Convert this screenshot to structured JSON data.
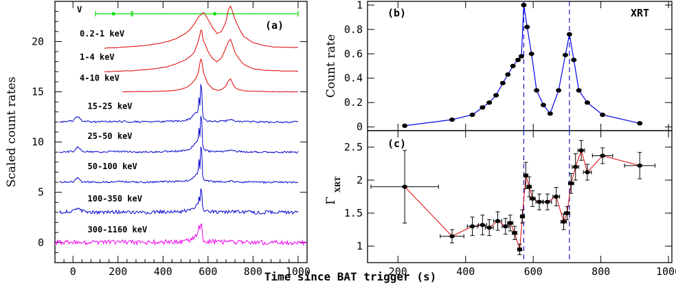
{
  "figure": {
    "xlabel": "Time since BAT trigger (s)"
  },
  "chart_data": [
    {
      "panel": "(a)",
      "type": "line",
      "ylabel": "Scaled count rates",
      "xlim": [
        -80,
        1040
      ],
      "ylim": [
        -2,
        24
      ],
      "xticks": [
        0,
        200,
        400,
        600,
        800,
        1000
      ],
      "yticks": [
        0,
        5,
        10,
        15,
        20
      ],
      "v_label": "V",
      "v_band": {
        "color": "#00dd00",
        "points": [
          {
            "x": 180,
            "xerr": [
              100,
              260
            ]
          },
          {
            "x": 630,
            "xerr": [
              265,
              1000
            ]
          }
        ]
      },
      "series": [
        {
          "name": "0.2-1 keV",
          "color": "#e00000",
          "offset": 19.3,
          "label_x": 30,
          "label_y": 20.5,
          "x": [
            140,
            200,
            260,
            320,
            380,
            420,
            460,
            500,
            520,
            540,
            560,
            570,
            580,
            590,
            600,
            620,
            640,
            660,
            680,
            690,
            700,
            710,
            720,
            740,
            760,
            800,
            850,
            900,
            1000
          ],
          "y": [
            19.35,
            19.4,
            19.5,
            19.6,
            19.8,
            20.0,
            20.3,
            20.8,
            21.2,
            21.8,
            22.5,
            22.7,
            22.9,
            22.6,
            22.2,
            21.4,
            20.8,
            21.0,
            22.0,
            23.2,
            23.5,
            22.9,
            22.2,
            21.2,
            20.5,
            19.9,
            19.6,
            19.45,
            19.4
          ]
        },
        {
          "name": "1-4 keV",
          "color": "#e00000",
          "offset": 17.0,
          "label_x": 30,
          "label_y": 18.2,
          "x": [
            140,
            200,
            260,
            320,
            380,
            420,
            460,
            500,
            520,
            540,
            550,
            560,
            565,
            570,
            575,
            580,
            590,
            600,
            620,
            640,
            660,
            680,
            690,
            700,
            710,
            720,
            740,
            760,
            800,
            850,
            900,
            1000
          ],
          "y": [
            17.0,
            17.05,
            17.1,
            17.2,
            17.35,
            17.5,
            17.8,
            18.2,
            18.5,
            19.0,
            19.6,
            20.3,
            20.8,
            21.4,
            20.6,
            20.0,
            19.6,
            19.0,
            18.3,
            18.0,
            18.4,
            19.4,
            20.0,
            20.2,
            19.6,
            18.9,
            18.2,
            17.7,
            17.3,
            17.15,
            17.1,
            17.05
          ]
        },
        {
          "name": "4-10 keV",
          "color": "#e00000",
          "offset": 15.0,
          "label_x": 30,
          "label_y": 16.1,
          "x": [
            220,
            300,
            380,
            440,
            480,
            510,
            530,
            545,
            555,
            560,
            565,
            570,
            575,
            580,
            590,
            600,
            620,
            640,
            660,
            680,
            690,
            700,
            710,
            720,
            740,
            760,
            800,
            850,
            900,
            1000
          ],
          "y": [
            15.0,
            15.02,
            15.05,
            15.1,
            15.25,
            15.5,
            15.9,
            16.3,
            16.8,
            17.3,
            18.0,
            18.4,
            17.6,
            16.9,
            16.3,
            15.8,
            15.3,
            15.15,
            15.2,
            15.6,
            16.1,
            16.3,
            15.8,
            15.4,
            15.2,
            15.1,
            15.05,
            15.02,
            15.0,
            15.0
          ]
        },
        {
          "name": "15-25 keV",
          "color": "#0000cc",
          "offset": 12.0,
          "label_x": 65,
          "label_y": 13.3,
          "x": [
            -60,
            0,
            20,
            40,
            100,
            200,
            300,
            400,
            480,
            520,
            540,
            555,
            560,
            565,
            570,
            573,
            576,
            580,
            590,
            600,
            640,
            680,
            700,
            720,
            760,
            800,
            900,
            1000
          ],
          "y": [
            12.0,
            12.1,
            12.6,
            12.1,
            12.0,
            12.05,
            12.0,
            12.05,
            12.1,
            12.3,
            12.8,
            13.0,
            14.5,
            13.5,
            17.2,
            14.3,
            13.0,
            12.4,
            12.2,
            12.1,
            12.05,
            12.1,
            12.3,
            12.1,
            12.05,
            12.0,
            12.0,
            12.0
          ]
        },
        {
          "name": "25-50 keV",
          "color": "#0000cc",
          "offset": 9.0,
          "label_x": 65,
          "label_y": 10.3,
          "x": [
            -60,
            0,
            20,
            40,
            100,
            200,
            300,
            400,
            480,
            520,
            540,
            555,
            560,
            565,
            570,
            573,
            576,
            580,
            590,
            600,
            640,
            680,
            700,
            720,
            760,
            800,
            900,
            1000
          ],
          "y": [
            9.0,
            9.05,
            9.5,
            9.1,
            9.0,
            9.05,
            9.0,
            9.05,
            9.1,
            9.3,
            9.8,
            10.1,
            11.4,
            10.4,
            13.9,
            11.3,
            9.9,
            9.3,
            9.2,
            9.1,
            9.05,
            9.1,
            9.2,
            9.1,
            9.05,
            9.0,
            9.0,
            9.0
          ]
        },
        {
          "name": "50-100 keV",
          "color": "#0000cc",
          "offset": 6.0,
          "label_x": 65,
          "label_y": 7.3,
          "x": [
            -60,
            0,
            20,
            40,
            100,
            200,
            300,
            400,
            480,
            520,
            540,
            555,
            560,
            565,
            570,
            573,
            576,
            580,
            590,
            600,
            640,
            680,
            700,
            720,
            760,
            800,
            900,
            1000
          ],
          "y": [
            6.0,
            6.05,
            6.4,
            6.05,
            6.0,
            6.05,
            6.0,
            6.05,
            6.1,
            6.2,
            6.6,
            6.9,
            8.2,
            7.2,
            11.0,
            8.2,
            6.8,
            6.3,
            6.15,
            6.1,
            6.05,
            6.05,
            6.1,
            6.05,
            6.0,
            6.0,
            6.0,
            6.0
          ]
        },
        {
          "name": "100-350 keV",
          "color": "#0000cc",
          "offset": 3.0,
          "label_x": 65,
          "label_y": 4.1,
          "x": [
            -60,
            0,
            20,
            40,
            100,
            200,
            300,
            400,
            480,
            520,
            540,
            555,
            560,
            565,
            570,
            573,
            576,
            580,
            590,
            600,
            640,
            680,
            700,
            720,
            760,
            800,
            900,
            1000
          ],
          "y": [
            3.0,
            3.1,
            3.4,
            3.1,
            3.0,
            3.05,
            3.0,
            3.05,
            3.1,
            3.2,
            3.5,
            3.8,
            4.6,
            4.0,
            6.2,
            4.5,
            3.7,
            3.3,
            3.15,
            3.1,
            3.05,
            3.05,
            3.1,
            3.05,
            3.0,
            3.0,
            3.0,
            3.0
          ]
        },
        {
          "name": "300-1160 keV",
          "color": "#ee00ee",
          "offset": 0.0,
          "label_x": 65,
          "label_y": 1.0,
          "x": [
            -80,
            0,
            100,
            200,
            300,
            400,
            480,
            520,
            540,
            555,
            560,
            565,
            570,
            573,
            576,
            580,
            590,
            600,
            640,
            680,
            700,
            720,
            760,
            800,
            900,
            1040
          ],
          "y": [
            0.0,
            0.05,
            0.0,
            0.05,
            0.0,
            0.05,
            0.1,
            0.2,
            0.5,
            0.8,
            1.6,
            1.0,
            2.5,
            1.3,
            0.6,
            0.3,
            0.15,
            0.1,
            0.05,
            0.05,
            0.1,
            0.05,
            0.0,
            0.0,
            0.0,
            0.0
          ]
        }
      ]
    },
    {
      "panel": "(b)",
      "type": "line",
      "ylabel": "Count rate",
      "annotation": "XRT",
      "xlim": [
        110,
        1010
      ],
      "ylim": [
        -0.03,
        1.03
      ],
      "yticks": [
        0,
        0.2,
        0.4,
        0.6,
        0.8,
        1
      ],
      "ytick_labels": [
        "0",
        "0.2",
        "0.4",
        "0.6",
        "0.8",
        "1"
      ],
      "color": "#0000ee",
      "vlines": [
        572,
        707
      ],
      "x": [
        220,
        360,
        420,
        450,
        470,
        490,
        510,
        525,
        540,
        555,
        565,
        572,
        582,
        595,
        610,
        630,
        650,
        675,
        695,
        707,
        720,
        735,
        760,
        805,
        915
      ],
      "y": [
        0.01,
        0.06,
        0.1,
        0.16,
        0.2,
        0.26,
        0.36,
        0.43,
        0.5,
        0.55,
        0.58,
        1.0,
        0.82,
        0.6,
        0.3,
        0.18,
        0.11,
        0.3,
        0.59,
        0.76,
        0.55,
        0.3,
        0.2,
        0.1,
        0.03
      ]
    },
    {
      "panel": "(c)",
      "type": "scatter",
      "ylabel": "Γ",
      "ylabel_sub": "XRT",
      "xlim": [
        110,
        1010
      ],
      "ylim": [
        0.75,
        2.75
      ],
      "xticks": [
        200,
        400,
        600,
        800,
        1000
      ],
      "yticks": [
        1,
        1.5,
        2,
        2.5
      ],
      "yerr_default": 0.12,
      "color": "#e00000",
      "vlines": [
        572,
        707
      ],
      "x": [
        220,
        360,
        420,
        450,
        470,
        495,
        518,
        532,
        545,
        560,
        568,
        578,
        588,
        598,
        618,
        642,
        668,
        690,
        700,
        712,
        725,
        742,
        760,
        805,
        915
      ],
      "y": [
        1.9,
        1.15,
        1.3,
        1.32,
        1.28,
        1.38,
        1.3,
        1.35,
        1.2,
        0.95,
        1.45,
        2.07,
        1.9,
        1.72,
        1.67,
        1.67,
        1.75,
        1.37,
        1.5,
        1.95,
        2.2,
        2.45,
        2.12,
        2.37,
        2.22
      ],
      "xerr": [
        100,
        35,
        15,
        12,
        12,
        12,
        10,
        8,
        7,
        6,
        6,
        6,
        6,
        8,
        10,
        12,
        10,
        8,
        8,
        8,
        10,
        10,
        12,
        30,
        45
      ],
      "yerr": [
        0.55,
        0.1,
        0.14,
        0.15,
        0.12,
        0.14,
        0.12,
        0.12,
        0.1,
        0.08,
        0.1,
        0.2,
        0.15,
        0.12,
        0.12,
        0.12,
        0.14,
        0.12,
        0.1,
        0.15,
        0.2,
        0.15,
        0.12,
        0.12,
        0.2
      ]
    }
  ]
}
